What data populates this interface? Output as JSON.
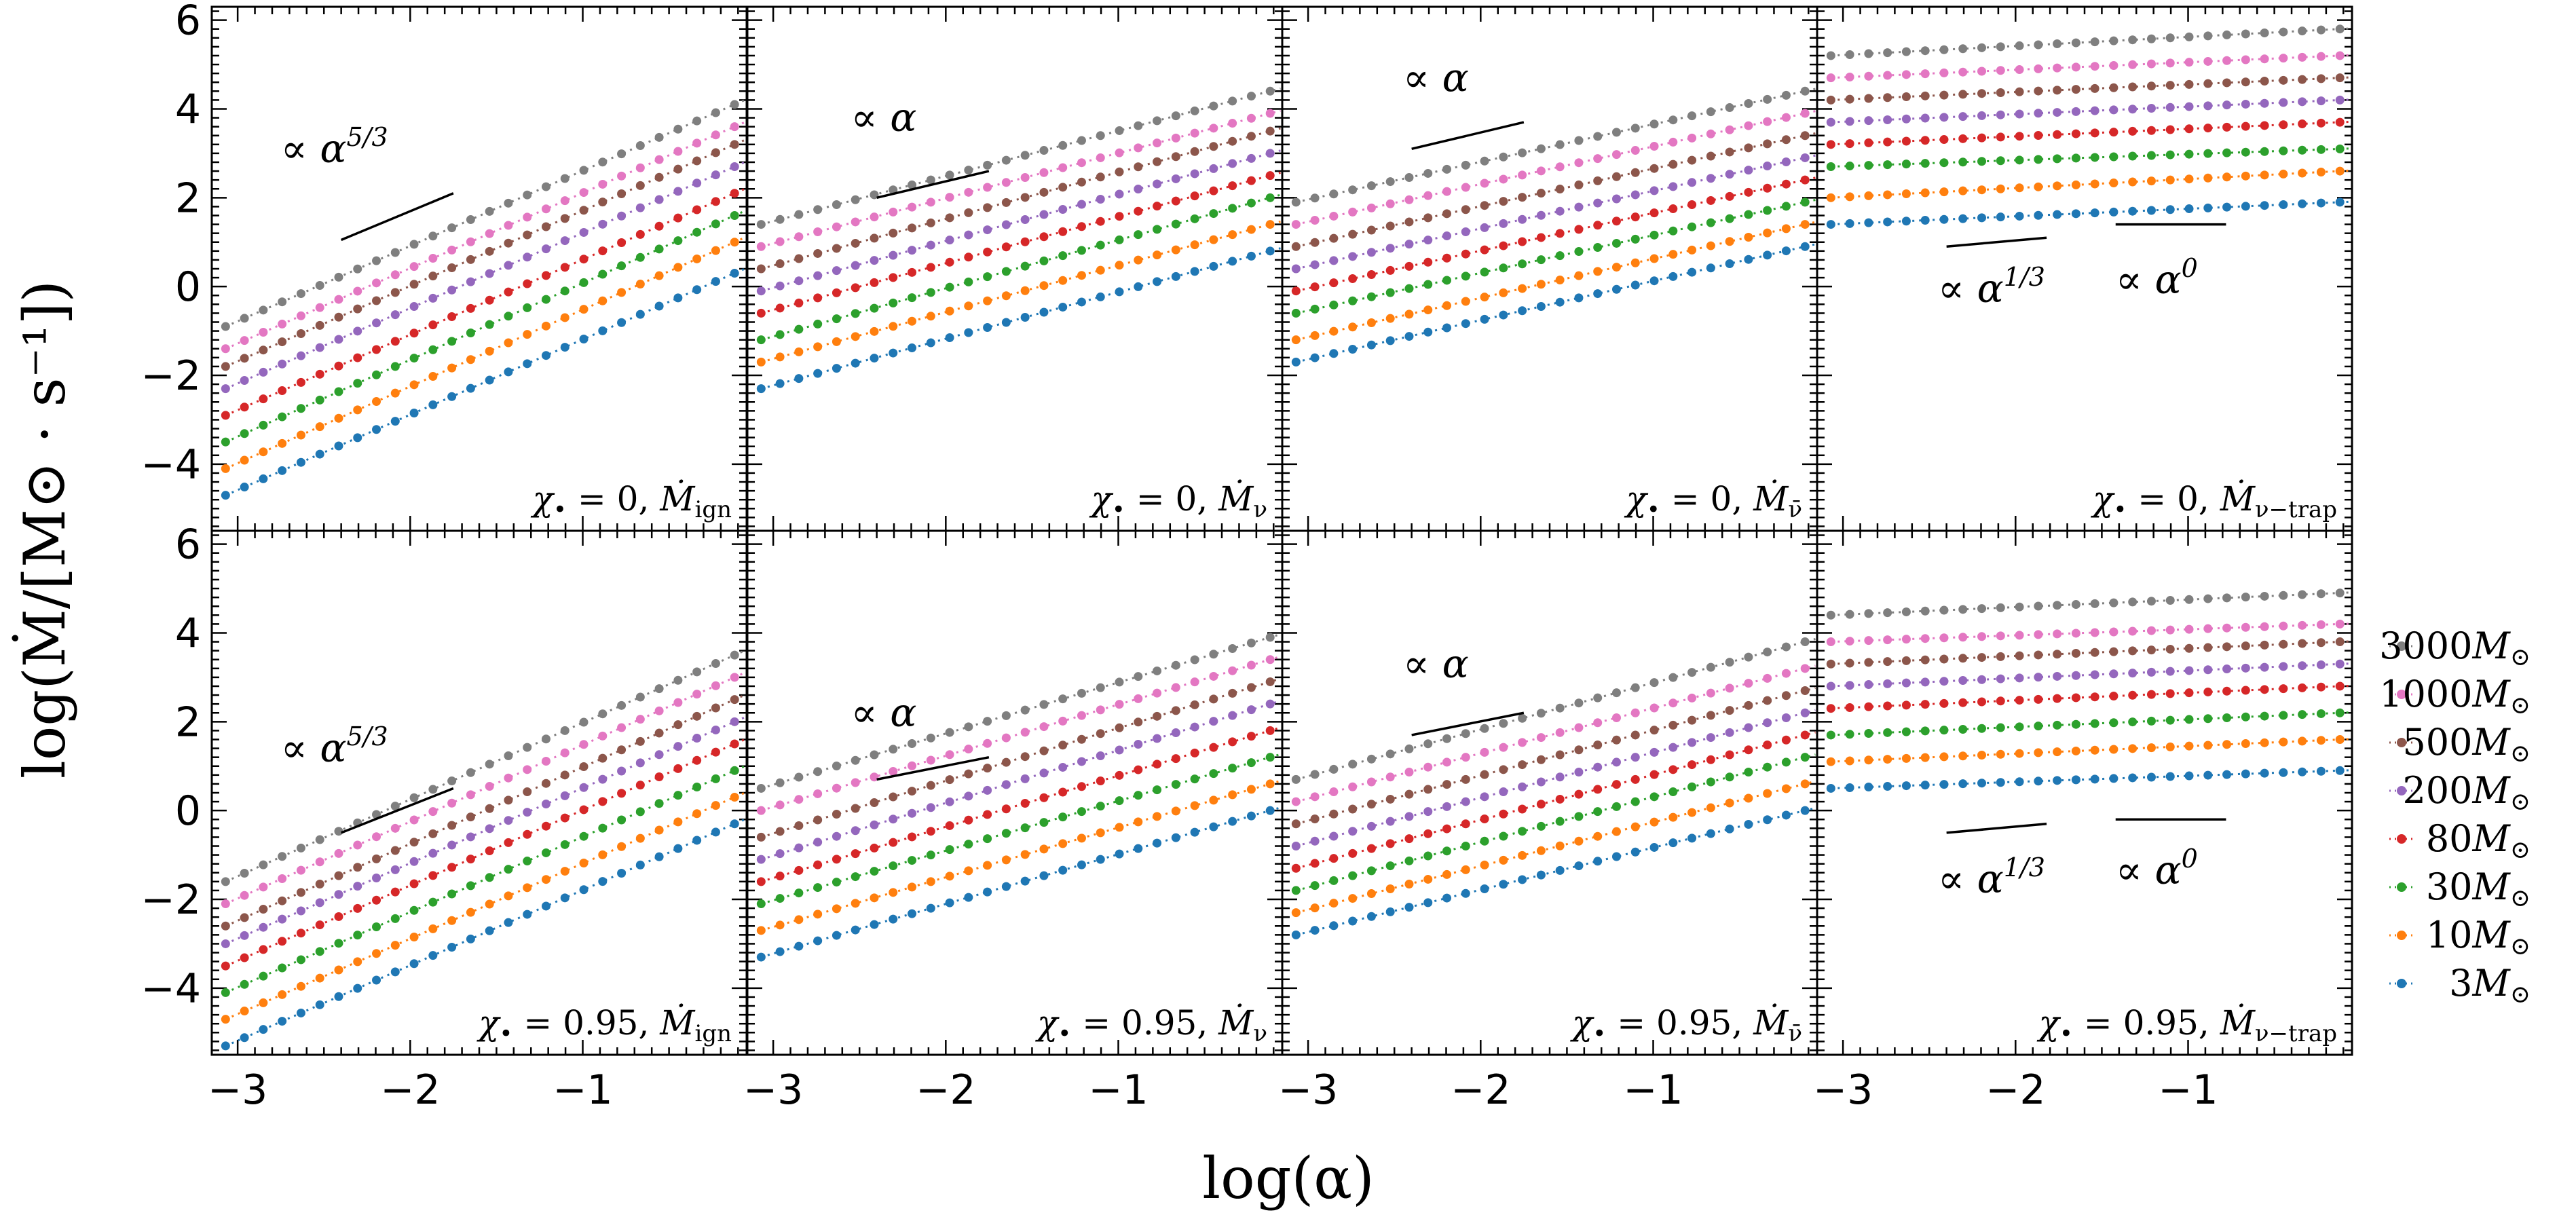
{
  "chart_data": {
    "type": "scatter",
    "xlabel": "log(α)",
    "ylabel": "log(Ṁ/[M⊙ · s⁻¹])",
    "xlim": [
      -3.15,
      -0.05
    ],
    "ylim": [
      -5.5,
      6.3
    ],
    "x_ticks": [
      -3,
      -2,
      -1
    ],
    "x_tick_labels": [
      "−3",
      "−2",
      "−1"
    ],
    "y_ticks": [
      -4,
      -2,
      0,
      2,
      4,
      6
    ],
    "y_tick_labels": [
      "−4",
      "−2",
      "0",
      "2",
      "4",
      "6"
    ],
    "legend": [
      {
        "label": "3000M⊙",
        "color": "#7f7f7f"
      },
      {
        "label": "1000M⊙",
        "color": "#e377c2"
      },
      {
        "label": "500M⊙",
        "color": "#8c564b"
      },
      {
        "label": "200M⊙",
        "color": "#9467bd"
      },
      {
        "label": "80M⊙",
        "color": "#d62728"
      },
      {
        "label": "30M⊙",
        "color": "#2ca02c"
      },
      {
        "label": "10M⊙",
        "color": "#ff7f0e"
      },
      {
        "label": "3M⊙",
        "color": "#1f77b4"
      }
    ],
    "panels": [
      {
        "row": 0,
        "col": 0,
        "label": "χ• = 0, Ṁign",
        "label_parts": {
          "prefix": "χ",
          "eq": " = 0, ",
          "var": "Ṁ",
          "sub": "ign"
        },
        "series_start": [
          -0.9,
          -1.4,
          -1.8,
          -2.3,
          -2.9,
          -3.5,
          -4.1,
          -4.7
        ],
        "series_end": [
          4.1,
          3.6,
          3.2,
          2.7,
          2.1,
          1.6,
          1.0,
          0.3
        ],
        "slope_annotation": [
          {
            "text": "∝ α",
            "sup": "5/3",
            "x1": -2.4,
            "y1": 1.05,
            "x2": -1.75,
            "y2": 2.1,
            "tx": -2.75,
            "ty": 2.8
          }
        ]
      },
      {
        "row": 0,
        "col": 1,
        "label": "χ• = 0, Ṁν",
        "label_parts": {
          "prefix": "χ",
          "eq": " = 0, ",
          "var": "Ṁ",
          "sub": "ν"
        },
        "series_start": [
          1.4,
          0.9,
          0.4,
          -0.1,
          -0.6,
          -1.2,
          -1.7,
          -2.3
        ],
        "series_end": [
          4.4,
          3.9,
          3.5,
          3.0,
          2.5,
          2.0,
          1.4,
          0.8
        ],
        "slope_annotation": [
          {
            "text": "∝ α",
            "sup": "",
            "x1": -2.4,
            "y1": 2.0,
            "x2": -1.75,
            "y2": 2.6,
            "tx": -2.55,
            "ty": 3.5
          }
        ]
      },
      {
        "row": 0,
        "col": 2,
        "label": "χ• = 0, Ṁν̄",
        "label_parts": {
          "prefix": "χ",
          "eq": " = 0, ",
          "var": "Ṁ",
          "sub": "ν̄"
        },
        "series_start": [
          1.9,
          1.4,
          0.9,
          0.4,
          -0.1,
          -0.6,
          -1.2,
          -1.7
        ],
        "series_end": [
          4.4,
          3.9,
          3.4,
          2.9,
          2.4,
          1.9,
          1.4,
          0.9
        ],
        "slope_annotation": [
          {
            "text": "∝ α",
            "sup": "",
            "x1": -2.4,
            "y1": 3.1,
            "x2": -1.75,
            "y2": 3.7,
            "tx": -2.45,
            "ty": 4.4
          }
        ]
      },
      {
        "row": 0,
        "col": 3,
        "label": "χ• = 0, Ṁν−trap",
        "label_parts": {
          "prefix": "χ",
          "eq": " = 0, ",
          "var": "Ṁ",
          "sub": "ν−trap"
        },
        "series_start": [
          5.2,
          4.7,
          4.2,
          3.7,
          3.2,
          2.7,
          2.0,
          1.4
        ],
        "series_end": [
          5.8,
          5.2,
          4.7,
          4.2,
          3.7,
          3.1,
          2.6,
          1.9
        ],
        "slope_annotation": [
          {
            "text": "∝ α",
            "sup": "1/3",
            "x1": -2.4,
            "y1": 0.9,
            "x2": -1.82,
            "y2": 1.1,
            "tx": -2.45,
            "ty": -0.35
          },
          {
            "text": "∝ α",
            "sup": "0",
            "x1": -1.42,
            "y1": 1.4,
            "x2": -0.78,
            "y2": 1.4,
            "tx": -1.42,
            "ty": -0.15
          }
        ]
      },
      {
        "row": 1,
        "col": 0,
        "label": "χ• = 0.95, Ṁign",
        "label_parts": {
          "prefix": "χ",
          "eq": " = 0.95, ",
          "var": "Ṁ",
          "sub": "ign"
        },
        "series_start": [
          -1.6,
          -2.1,
          -2.6,
          -3.0,
          -3.5,
          -4.1,
          -4.7,
          -5.3
        ],
        "series_end": [
          3.5,
          3.0,
          2.5,
          2.0,
          1.5,
          0.9,
          0.3,
          -0.3
        ],
        "slope_annotation": [
          {
            "text": "∝ α",
            "sup": "5/3",
            "x1": -2.4,
            "y1": -0.5,
            "x2": -1.75,
            "y2": 0.5,
            "tx": -2.75,
            "ty": 1.1
          }
        ]
      },
      {
        "row": 1,
        "col": 1,
        "label": "χ• = 0.95, Ṁν",
        "label_parts": {
          "prefix": "χ",
          "eq": " = 0.95, ",
          "var": "Ṁ",
          "sub": "ν"
        },
        "series_start": [
          0.5,
          0.0,
          -0.6,
          -1.1,
          -1.6,
          -2.1,
          -2.7,
          -3.3
        ],
        "series_end": [
          3.9,
          3.4,
          2.9,
          2.4,
          1.8,
          1.2,
          0.6,
          0.0
        ],
        "slope_annotation": [
          {
            "text": "∝ α",
            "sup": "",
            "x1": -2.4,
            "y1": 0.7,
            "x2": -1.75,
            "y2": 1.2,
            "tx": -2.55,
            "ty": 1.9
          }
        ]
      },
      {
        "row": 1,
        "col": 2,
        "label": "χ• = 0.95, Ṁν̄",
        "label_parts": {
          "prefix": "χ",
          "eq": " = 0.95, ",
          "var": "Ṁ",
          "sub": "ν̄"
        },
        "series_start": [
          0.7,
          0.2,
          -0.3,
          -0.8,
          -1.3,
          -1.8,
          -2.3,
          -2.8
        ],
        "series_end": [
          3.8,
          3.2,
          2.7,
          2.2,
          1.7,
          1.2,
          0.6,
          0.0
        ],
        "slope_annotation": [
          {
            "text": "∝ α",
            "sup": "",
            "x1": -2.4,
            "y1": 1.7,
            "x2": -1.75,
            "y2": 2.2,
            "tx": -2.45,
            "ty": 3.0
          }
        ]
      },
      {
        "row": 1,
        "col": 3,
        "label": "χ• = 0.95, Ṁν−trap",
        "label_parts": {
          "prefix": "χ",
          "eq": " = 0.95, ",
          "var": "Ṁ",
          "sub": "ν−trap"
        },
        "series_start": [
          4.4,
          3.8,
          3.3,
          2.8,
          2.3,
          1.7,
          1.1,
          0.5
        ],
        "series_end": [
          4.9,
          4.2,
          3.8,
          3.3,
          2.8,
          2.2,
          1.6,
          0.9
        ],
        "slope_annotation": [
          {
            "text": "∝ α",
            "sup": "1/3",
            "x1": -2.4,
            "y1": -0.5,
            "x2": -1.82,
            "y2": -0.3,
            "tx": -2.45,
            "ty": -1.85
          },
          {
            "text": "∝ α",
            "sup": "0",
            "x1": -1.42,
            "y1": -0.2,
            "x2": -0.78,
            "y2": -0.2,
            "tx": -1.42,
            "ty": -1.65
          }
        ]
      }
    ]
  }
}
